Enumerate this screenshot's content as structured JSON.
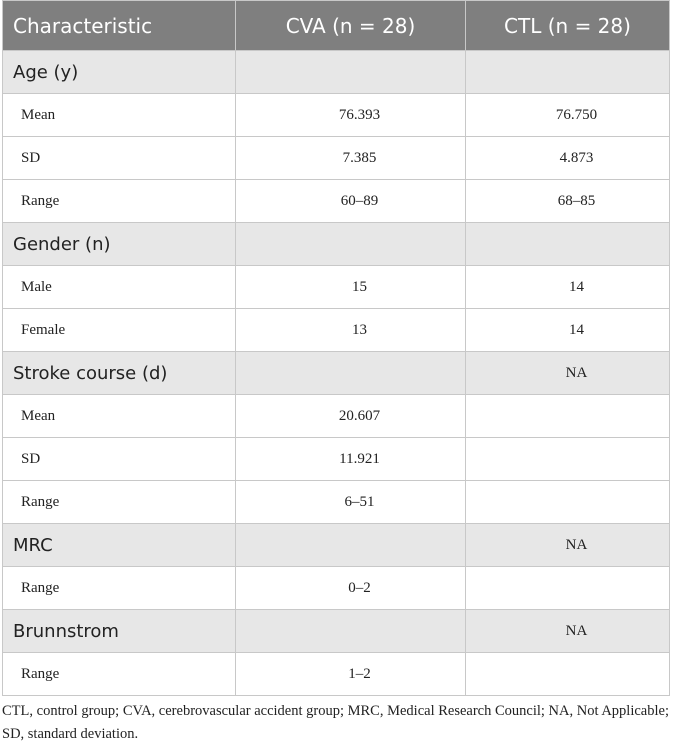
{
  "table": {
    "header": [
      "Characteristic",
      "CVA (n = 28)",
      "CTL (n = 28)"
    ],
    "rows": [
      {
        "type": "section",
        "cells": [
          "Age (y)",
          null,
          null
        ]
      },
      {
        "type": "data",
        "cells": [
          "Mean",
          "76.393",
          "76.750"
        ]
      },
      {
        "type": "data",
        "cells": [
          "SD",
          "7.385",
          "4.873"
        ]
      },
      {
        "type": "data",
        "cells": [
          "Range",
          "60–89",
          "68–85"
        ]
      },
      {
        "type": "section",
        "cells": [
          "Gender (n)",
          null,
          null
        ]
      },
      {
        "type": "data",
        "cells": [
          "Male",
          "15",
          "14"
        ]
      },
      {
        "type": "data",
        "cells": [
          "Female",
          "13",
          "14"
        ]
      },
      {
        "type": "section",
        "cells": [
          "Stroke course (d)",
          null,
          "NA"
        ]
      },
      {
        "type": "data",
        "cells": [
          "Mean",
          "20.607",
          null
        ]
      },
      {
        "type": "data",
        "cells": [
          "SD",
          "11.921",
          null
        ]
      },
      {
        "type": "data",
        "cells": [
          "Range",
          "6–51",
          null
        ]
      },
      {
        "type": "section",
        "cells": [
          "MRC",
          null,
          "NA"
        ]
      },
      {
        "type": "data",
        "cells": [
          "Range",
          "0–2",
          null
        ]
      },
      {
        "type": "section",
        "cells": [
          "Brunnstrom",
          null,
          "NA"
        ]
      },
      {
        "type": "data",
        "cells": [
          "Range",
          "1–2",
          null
        ]
      }
    ],
    "footnote": "CTL, control group; CVA, cerebrovascular accident group; MRC, Medical Research Council; NA, Not Applicable; SD, standard deviation."
  }
}
